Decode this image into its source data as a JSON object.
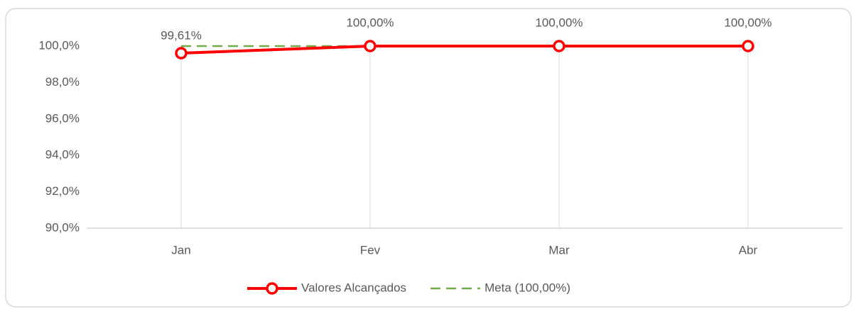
{
  "chart_data": {
    "type": "line",
    "categories": [
      "Jan",
      "Fev",
      "Mar",
      "Abr"
    ],
    "series": [
      {
        "name": "Valores Alcançados",
        "color": "#ff0000",
        "values": [
          99.61,
          100,
          100,
          100
        ],
        "value_labels": [
          "99,61%",
          "100,00%",
          "100,00%",
          "100,00%"
        ]
      },
      {
        "name": "Meta (100,00%)",
        "color": "#70ad47",
        "values": [
          100,
          100,
          100,
          100
        ],
        "dashed": true
      }
    ],
    "ylim": [
      90,
      100
    ],
    "yticks": [
      {
        "value": 90,
        "label": "90,0%"
      },
      {
        "value": 92,
        "label": "92,0%"
      },
      {
        "value": 94,
        "label": "94,0%"
      },
      {
        "value": 96,
        "label": "96,0%"
      },
      {
        "value": 98,
        "label": "98,0%"
      },
      {
        "value": 100,
        "label": "100,0%"
      }
    ],
    "grid": "vertical",
    "legend": "bottom"
  }
}
